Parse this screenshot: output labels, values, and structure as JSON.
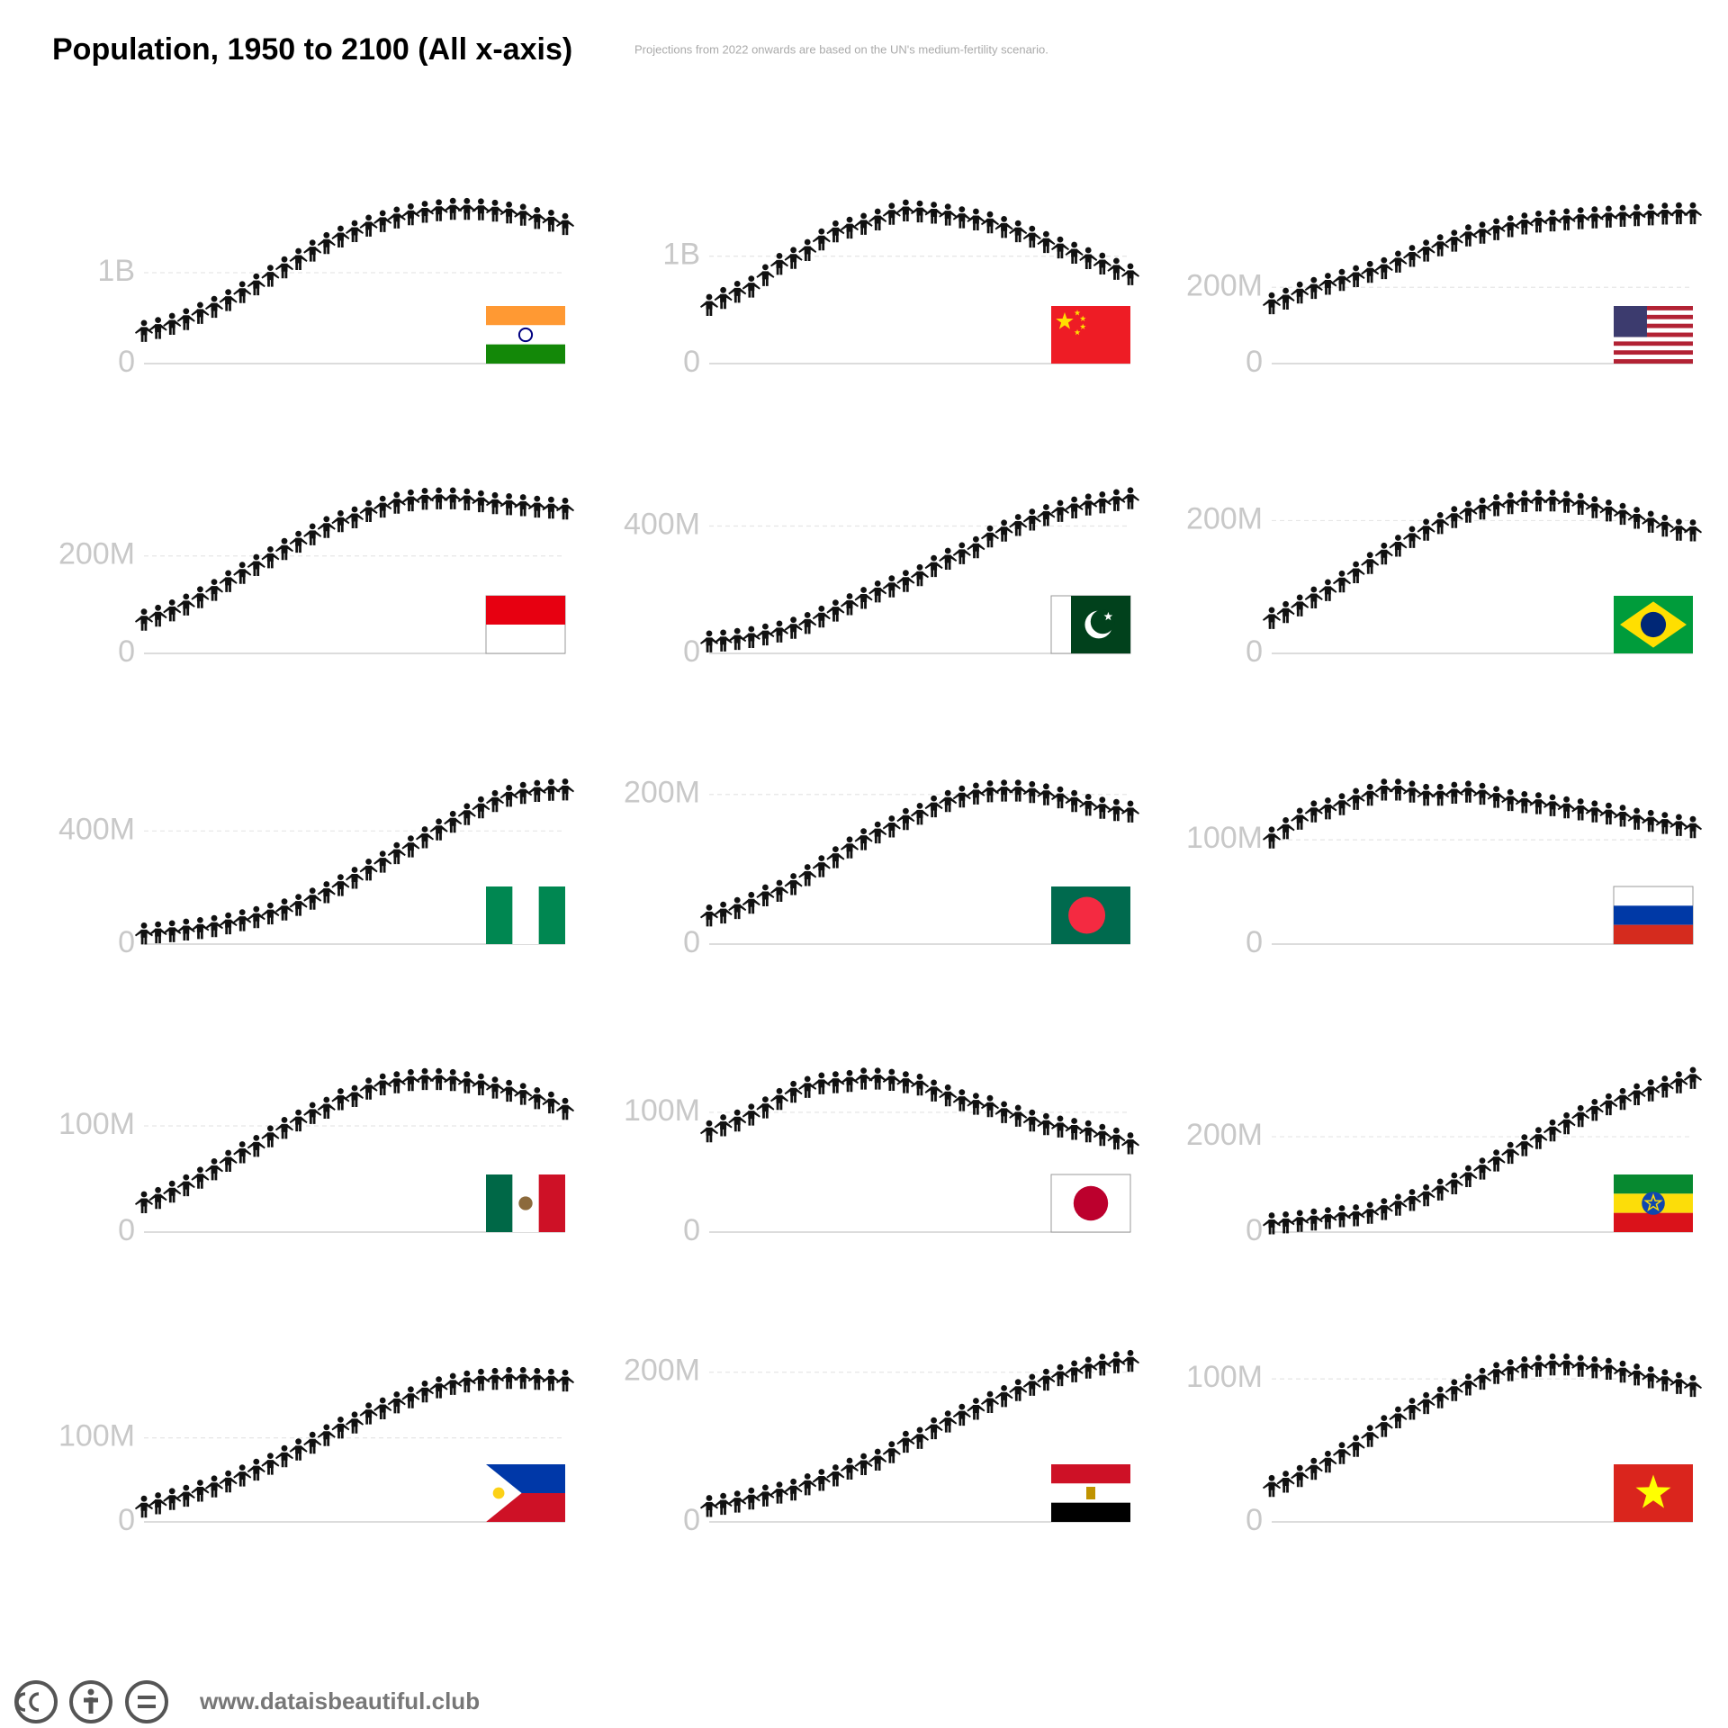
{
  "title": "Population, 1950 to 2100 (All x-axis)",
  "subtitle": "Projections from 2022 onwards are based on the UN's medium-fertility scenario.",
  "footer": "www.dataisbeautiful.club",
  "chart_data": [
    {
      "type": "pictogram-line",
      "x": [
        1950,
        1955,
        1960,
        1965,
        1970,
        1975,
        1980,
        1985,
        1990,
        1995,
        2000,
        2005,
        2010,
        2015,
        2020,
        2025,
        2030,
        2035,
        2040,
        2045,
        2050,
        2055,
        2060,
        2065,
        2070,
        2075,
        2080,
        2085,
        2090,
        2095,
        2100
      ],
      "xlim": [
        1950,
        2100
      ],
      "values": [
        357,
        390,
        436,
        487,
        555,
        623,
        697,
        784,
        870,
        964,
        1057,
        1148,
        1241,
        1323,
        1396,
        1455,
        1515,
        1565,
        1605,
        1640,
        1668,
        1685,
        1701,
        1700,
        1695,
        1680,
        1660,
        1635,
        1600,
        1570,
        1533
      ],
      "ylim": [
        0,
        1950
      ],
      "yticks": [
        0,
        {
          "value": 1000,
          "label": "1B"
        }
      ],
      "color": "#111111"
    },
    {
      "type": "pictogram-line",
      "x": [
        1950,
        1955,
        1960,
        1965,
        1970,
        1975,
        1980,
        1985,
        1990,
        1995,
        2000,
        2005,
        2010,
        2015,
        2020,
        2025,
        2030,
        2035,
        2040,
        2045,
        2050,
        2055,
        2060,
        2065,
        2070,
        2075,
        2080,
        2085,
        2090,
        2095,
        2100
      ],
      "xlim": [
        1950,
        2100
      ],
      "values": [
        544,
        609,
        667,
        715,
        822,
        926,
        982,
        1055,
        1154,
        1229,
        1264,
        1299,
        1340,
        1393,
        1424,
        1415,
        1403,
        1385,
        1360,
        1340,
        1313,
        1270,
        1230,
        1180,
        1130,
        1080,
        1030,
        980,
        930,
        880,
        830
      ],
      "ylim": [
        0,
        1650
      ],
      "yticks": [
        0,
        {
          "value": 1000,
          "label": "1B"
        }
      ],
      "color": "#111111"
    },
    {
      "type": "pictogram-line",
      "x": [
        1950,
        1955,
        1960,
        1965,
        1970,
        1975,
        1980,
        1985,
        1990,
        1995,
        2000,
        2005,
        2010,
        2015,
        2020,
        2025,
        2030,
        2035,
        2040,
        2045,
        2050,
        2055,
        2060,
        2065,
        2070,
        2075,
        2080,
        2085,
        2090,
        2095,
        2100
      ],
      "xlim": [
        1950,
        2100
      ],
      "values": [
        158,
        170,
        186,
        198,
        209,
        219,
        229,
        240,
        250,
        267,
        282,
        296,
        310,
        322,
        336,
        343,
        352,
        360,
        367,
        372,
        375,
        378,
        381,
        383,
        385,
        387,
        389,
        391,
        393,
        394,
        394
      ],
      "ylim": [
        0,
        465
      ],
      "yticks": [
        0,
        {
          "value": 200,
          "label": "200M"
        }
      ],
      "color": "#111111"
    },
    {
      "type": "pictogram-line",
      "x": [
        1950,
        1955,
        1960,
        1965,
        1970,
        1975,
        1980,
        1985,
        1990,
        1995,
        2000,
        2005,
        2010,
        2015,
        2020,
        2025,
        2030,
        2035,
        2040,
        2045,
        2050,
        2055,
        2060,
        2065,
        2070,
        2075,
        2080,
        2085,
        2090,
        2095,
        2100
      ],
      "xlim": [
        1950,
        2100
      ],
      "values": [
        69,
        77,
        88,
        100,
        115,
        130,
        148,
        165,
        181,
        197,
        214,
        229,
        244,
        259,
        271,
        279,
        292,
        301,
        309,
        314,
        317,
        318,
        318,
        316,
        312,
        308,
        306,
        304,
        301,
        299,
        297
      ],
      "ylim": [
        0,
        364
      ],
      "yticks": [
        0,
        {
          "value": 200,
          "label": "200M"
        }
      ],
      "color": "#111111"
    },
    {
      "type": "pictogram-line",
      "x": [
        1950,
        1955,
        1960,
        1965,
        1970,
        1975,
        1980,
        1985,
        1990,
        1995,
        2000,
        2005,
        2010,
        2015,
        2020,
        2025,
        2030,
        2035,
        2040,
        2045,
        2050,
        2055,
        2060,
        2065,
        2070,
        2075,
        2080,
        2085,
        2090,
        2095,
        2100
      ],
      "xlim": [
        1950,
        2100
      ],
      "values": [
        37,
        40,
        45,
        51,
        59,
        68,
        80,
        95,
        115,
        134,
        154,
        174,
        194,
        210,
        227,
        245,
        274,
        297,
        314,
        333,
        367,
        385,
        403,
        420,
        434,
        447,
        458,
        467,
        474,
        481,
        487
      ],
      "ylim": [
        0,
        557
      ],
      "yticks": [
        0,
        {
          "value": 400,
          "label": "400M"
        }
      ],
      "color": "#111111"
    },
    {
      "type": "pictogram-line",
      "x": [
        1950,
        1955,
        1960,
        1965,
        1970,
        1975,
        1980,
        1985,
        1990,
        1995,
        2000,
        2005,
        2010,
        2015,
        2020,
        2025,
        2030,
        2035,
        2040,
        2045,
        2050,
        2055,
        2060,
        2065,
        2070,
        2075,
        2080,
        2085,
        2090,
        2095,
        2100
      ],
      "xlim": [
        1950,
        2100
      ],
      "values": [
        53,
        62,
        72,
        84,
        95,
        108,
        122,
        136,
        150,
        162,
        175,
        186,
        196,
        205,
        213,
        218,
        223,
        226,
        229,
        230,
        230,
        228,
        225,
        220,
        215,
        210,
        204,
        198,
        192,
        186,
        185
      ],
      "ylim": [
        0,
        267
      ],
      "yticks": [
        0,
        {
          "value": 200,
          "label": "200M"
        }
      ],
      "color": "#111111"
    },
    {
      "type": "pictogram-line",
      "x": [
        1950,
        1955,
        1960,
        1965,
        1970,
        1975,
        1980,
        1985,
        1990,
        1995,
        2000,
        2005,
        2010,
        2015,
        2020,
        2025,
        2030,
        2035,
        2040,
        2045,
        2050,
        2055,
        2060,
        2065,
        2070,
        2075,
        2080,
        2085,
        2090,
        2095,
        2100
      ],
      "xlim": [
        1950,
        2100
      ],
      "values": [
        37,
        41,
        45,
        51,
        56,
        63,
        73,
        84,
        95,
        108,
        122,
        138,
        160,
        183,
        208,
        234,
        263,
        291,
        321,
        345,
        377,
        405,
        432,
        459,
        483,
        505,
        524,
        534,
        541,
        545,
        546
      ],
      "ylim": [
        0,
        627
      ],
      "yticks": [
        0,
        {
          "value": 400,
          "label": "400M"
        }
      ],
      "color": "#111111"
    },
    {
      "type": "pictogram-line",
      "x": [
        1950,
        1955,
        1960,
        1965,
        1970,
        1975,
        1980,
        1985,
        1990,
        1995,
        2000,
        2005,
        2010,
        2015,
        2020,
        2025,
        2030,
        2035,
        2040,
        2045,
        2050,
        2055,
        2060,
        2065,
        2070,
        2075,
        2080,
        2085,
        2090,
        2095,
        2100
      ],
      "xlim": [
        1950,
        2100
      ],
      "values": [
        38,
        42,
        48,
        55,
        65,
        71,
        80,
        92,
        104,
        116,
        129,
        140,
        149,
        157,
        167,
        174,
        184,
        191,
        197,
        201,
        204,
        205,
        205,
        203,
        200,
        196,
        191,
        186,
        182,
        179,
        177
      ],
      "ylim": [
        0,
        237
      ],
      "yticks": [
        0,
        {
          "value": 200,
          "label": "200M"
        }
      ],
      "color": "#111111"
    },
    {
      "type": "pictogram-line",
      "x": [
        1950,
        1955,
        1960,
        1965,
        1970,
        1975,
        1980,
        1985,
        1990,
        1995,
        2000,
        2005,
        2010,
        2015,
        2020,
        2025,
        2030,
        2035,
        2040,
        2045,
        2050,
        2055,
        2060,
        2065,
        2070,
        2075,
        2080,
        2085,
        2090,
        2095,
        2100
      ],
      "xlim": [
        1950,
        2100
      ],
      "values": [
        102,
        111,
        120,
        127,
        130,
        134,
        139,
        143,
        148,
        148,
        146,
        143,
        143,
        145,
        146,
        144,
        141,
        138,
        136,
        135,
        133,
        131,
        129,
        127,
        125,
        123,
        120,
        118,
        116,
        114,
        112
      ],
      "ylim": [
        0,
        170
      ],
      "yticks": [
        0,
        {
          "value": 100,
          "label": "100M"
        }
      ],
      "color": "#111111"
    },
    {
      "type": "pictogram-line",
      "x": [
        1950,
        1955,
        1960,
        1965,
        1970,
        1975,
        1980,
        1985,
        1990,
        1995,
        2000,
        2005,
        2010,
        2015,
        2020,
        2025,
        2030,
        2035,
        2040,
        2045,
        2050,
        2055,
        2060,
        2065,
        2070,
        2075,
        2080,
        2085,
        2090,
        2095,
        2100
      ],
      "xlim": [
        1950,
        2100
      ],
      "values": [
        28,
        32,
        38,
        44,
        51,
        59,
        67,
        75,
        81,
        90,
        98,
        105,
        112,
        117,
        125,
        128,
        135,
        139,
        141,
        143,
        144,
        144,
        143,
        141,
        139,
        136,
        133,
        130,
        126,
        122,
        116
      ],
      "ylim": [
        0,
        167
      ],
      "yticks": [
        0,
        {
          "value": 100,
          "label": "100M"
        }
      ],
      "color": "#111111"
    },
    {
      "type": "pictogram-line",
      "x": [
        1950,
        1955,
        1960,
        1965,
        1970,
        1975,
        1980,
        1985,
        1990,
        1995,
        2000,
        2005,
        2010,
        2015,
        2020,
        2025,
        2030,
        2035,
        2040,
        2045,
        2050,
        2055,
        2060,
        2065,
        2070,
        2075,
        2080,
        2085,
        2090,
        2095,
        2100
      ],
      "xlim": [
        1950,
        2100
      ],
      "values": [
        84,
        89,
        93,
        98,
        104,
        111,
        117,
        121,
        124,
        125,
        126,
        128,
        128,
        127,
        125,
        123,
        118,
        114,
        110,
        107,
        105,
        100,
        97,
        93,
        90,
        88,
        86,
        84,
        81,
        78,
        74
      ],
      "ylim": [
        0,
        148
      ],
      "yticks": [
        0,
        {
          "value": 100,
          "label": "100M"
        }
      ],
      "color": "#111111"
    },
    {
      "type": "pictogram-line",
      "x": [
        1950,
        1955,
        1960,
        1965,
        1970,
        1975,
        1980,
        1985,
        1990,
        1995,
        2000,
        2005,
        2010,
        2015,
        2020,
        2025,
        2030,
        2035,
        2040,
        2045,
        2050,
        2055,
        2060,
        2065,
        2070,
        2075,
        2080,
        2085,
        2090,
        2095,
        2100
      ],
      "xlim": [
        1950,
        2100
      ],
      "values": [
        18,
        20,
        23,
        26,
        29,
        33,
        35,
        40,
        48,
        57,
        67,
        77,
        89,
        102,
        117,
        133,
        150,
        166,
        182,
        197,
        213,
        228,
        243,
        256,
        268,
        279,
        289,
        297,
        305,
        314,
        323
      ],
      "ylim": [
        0,
        372
      ],
      "yticks": [
        0,
        {
          "value": 200,
          "label": "200M"
        }
      ],
      "color": "#111111"
    },
    {
      "type": "pictogram-line",
      "x": [
        1950,
        1955,
        1960,
        1965,
        1970,
        1975,
        1980,
        1985,
        1990,
        1995,
        2000,
        2005,
        2010,
        2015,
        2020,
        2025,
        2030,
        2035,
        2040,
        2045,
        2050,
        2055,
        2060,
        2065,
        2070,
        2075,
        2080,
        2085,
        2090,
        2095,
        2100
      ],
      "xlim": [
        1950,
        2100
      ],
      "values": [
        18,
        22,
        27,
        31,
        37,
        42,
        48,
        55,
        62,
        69,
        78,
        86,
        94,
        103,
        112,
        118,
        129,
        135,
        142,
        148,
        155,
        160,
        164,
        167,
        169,
        170,
        171,
        171,
        170,
        169,
        168
      ],
      "ylim": [
        0,
        211
      ],
      "yticks": [
        0,
        {
          "value": 100,
          "label": "100M"
        }
      ],
      "color": "#111111"
    },
    {
      "type": "pictogram-line",
      "x": [
        1950,
        1955,
        1960,
        1965,
        1970,
        1975,
        1980,
        1985,
        1990,
        1995,
        2000,
        2005,
        2010,
        2015,
        2020,
        2025,
        2030,
        2035,
        2040,
        2045,
        2050,
        2055,
        2060,
        2065,
        2070,
        2075,
        2080,
        2085,
        2090,
        2095,
        2100
      ],
      "xlim": [
        1950,
        2100
      ],
      "values": [
        21,
        24,
        27,
        31,
        35,
        39,
        43,
        50,
        56,
        62,
        71,
        77,
        83,
        93,
        107,
        112,
        125,
        134,
        143,
        151,
        160,
        168,
        176,
        183,
        190,
        196,
        201,
        206,
        210,
        213,
        215
      ],
      "ylim": [
        0,
        237
      ],
      "yticks": [
        0,
        {
          "value": 200,
          "label": "200M"
        }
      ],
      "color": "#111111"
    },
    {
      "type": "pictogram-line",
      "x": [
        1950,
        1955,
        1960,
        1965,
        1970,
        1975,
        1980,
        1985,
        1990,
        1995,
        2000,
        2005,
        2010,
        2015,
        2020,
        2025,
        2030,
        2035,
        2040,
        2045,
        2050,
        2055,
        2060,
        2065,
        2070,
        2075,
        2080,
        2085,
        2090,
        2095,
        2100
      ],
      "xlim": [
        1950,
        2100
      ],
      "values": [
        25,
        28,
        32,
        37,
        42,
        48,
        53,
        60,
        67,
        73,
        79,
        83,
        87,
        92,
        96,
        100,
        104,
        106,
        108,
        109,
        110,
        110,
        109,
        108,
        107,
        105,
        103,
        101,
        99,
        97,
        95
      ],
      "ylim": [
        0,
        124
      ],
      "yticks": [
        0,
        {
          "value": 100,
          "label": "100M"
        }
      ],
      "color": "#111111"
    }
  ]
}
